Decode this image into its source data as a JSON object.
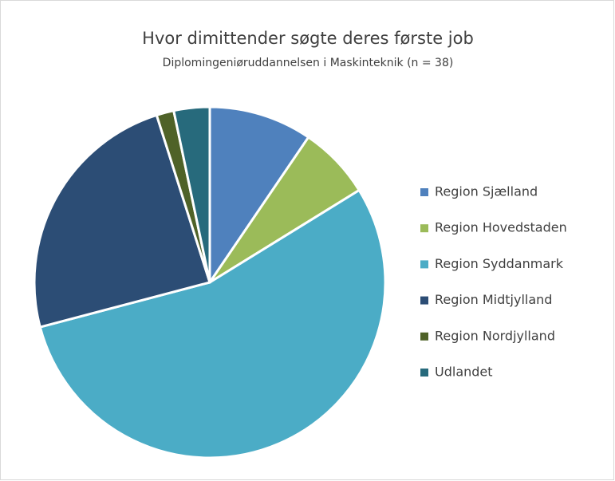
{
  "chart_data": {
    "type": "pie",
    "title": "Hvor dimittender søgte deres første job",
    "subtitle": "Diplomingeniøruddannelsen i Maskinteknik (n = 38)",
    "categories": [
      "Region Sjælland",
      "Region Hovedstaden",
      "Region Syddanmark",
      "Region Midtjylland",
      "Region Nordjylland",
      "Udlandet"
    ],
    "values": [
      9.5,
      6.7,
      54.7,
      24.2,
      1.6,
      3.3
    ],
    "colors": [
      "#4f81bd",
      "#9bbb59",
      "#4bacc6",
      "#2c4d75",
      "#4f6228",
      "#276a7c"
    ],
    "legend": "right"
  }
}
